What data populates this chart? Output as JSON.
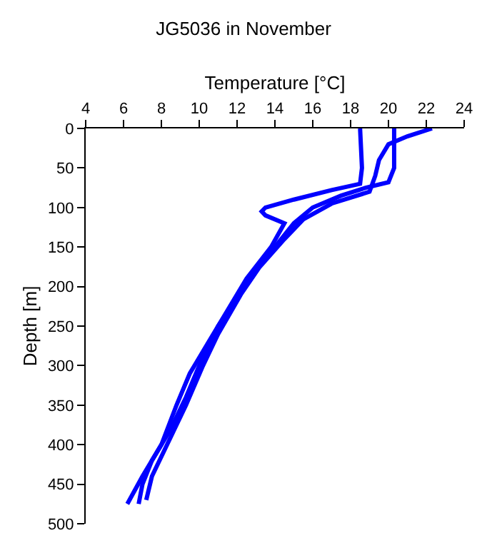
{
  "chart_data": {
    "type": "line",
    "title": "JG5036 in November",
    "xlabel": "Temperature [°C]",
    "ylabel": "Depth [m]",
    "xlim": [
      4,
      24
    ],
    "xticks": [
      4,
      6,
      8,
      10,
      12,
      14,
      16,
      18,
      20,
      22,
      24
    ],
    "ylim": [
      500,
      0
    ],
    "yticks": [
      0,
      50,
      100,
      150,
      200,
      250,
      300,
      350,
      400,
      450,
      500
    ],
    "marker": "none",
    "line_style": "solid",
    "series": [
      {
        "color": "#0000ff",
        "x": [
          20.3,
          20.3,
          20.0,
          18.8,
          17.5,
          16,
          15,
          14,
          13,
          12,
          11,
          10,
          9.3,
          8.5,
          7.5,
          7,
          6.8
        ],
        "values": [
          0,
          50,
          68,
          75,
          85,
          100,
          120,
          150,
          180,
          215,
          250,
          300,
          340,
          380,
          420,
          450,
          475
        ]
      },
      {
        "color": "#0000ff",
        "x": [
          18.5,
          18.6,
          18.5,
          17,
          15,
          13.5,
          13.3,
          13.5,
          14.5,
          13.8,
          12.5,
          11.5,
          10.5,
          9.5,
          8.8,
          8,
          7,
          6.2
        ],
        "values": [
          0,
          50,
          70,
          78,
          90,
          100,
          105,
          110,
          120,
          150,
          190,
          230,
          270,
          310,
          350,
          400,
          440,
          475
        ]
      },
      {
        "color": "#0000ff",
        "x": [
          22.3,
          21,
          20,
          19.5,
          19.3,
          19,
          17,
          15.5,
          14.5,
          13.2,
          12.2,
          11,
          10.2,
          9.3,
          8.3,
          7.5,
          7.2
        ],
        "values": [
          0,
          10,
          20,
          40,
          60,
          80,
          95,
          115,
          140,
          175,
          210,
          260,
          300,
          350,
          400,
          440,
          470
        ]
      }
    ]
  }
}
